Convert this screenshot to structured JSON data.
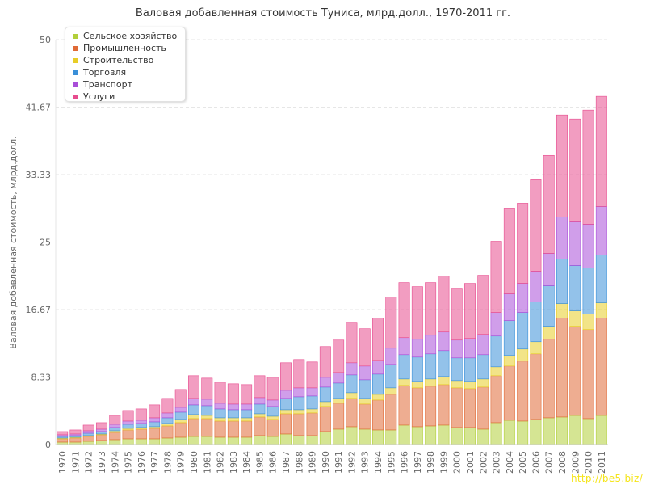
{
  "chart_data": {
    "type": "bar",
    "stacked": true,
    "title": "Валовая добавленная стоимость Туниса, млрд.долл., 1970-2011 гг.",
    "ylabel": "Валовая добавленная стоимость, млрд.долл.",
    "xlabel": "",
    "ylim": [
      0,
      50
    ],
    "yticks": [
      "0",
      "8.33",
      "16.67",
      "25",
      "33.33",
      "41.67",
      "50"
    ],
    "grid": true,
    "legend_position": "top-left",
    "categories": [
      "1970",
      "1971",
      "1972",
      "1973",
      "1974",
      "1975",
      "1976",
      "1977",
      "1978",
      "1979",
      "1980",
      "1981",
      "1982",
      "1983",
      "1984",
      "1985",
      "1986",
      "1987",
      "1988",
      "1989",
      "1990",
      "1991",
      "1992",
      "1993",
      "1994",
      "1995",
      "1996",
      "1997",
      "1998",
      "1999",
      "2000",
      "2001",
      "2002",
      "2003",
      "2004",
      "2005",
      "2006",
      "2007",
      "2008",
      "2009",
      "2010",
      "2011"
    ],
    "series": [
      {
        "name": "Сельское хозяйство",
        "color": "#b2cf3a",
        "values": [
          0.3,
          0.3,
          0.4,
          0.5,
          0.6,
          0.7,
          0.7,
          0.7,
          0.8,
          0.9,
          1.0,
          1.0,
          0.9,
          0.9,
          0.9,
          1.1,
          1.0,
          1.3,
          1.1,
          1.1,
          1.6,
          1.9,
          2.2,
          1.9,
          1.8,
          1.8,
          2.4,
          2.2,
          2.3,
          2.4,
          2.1,
          2.1,
          1.9,
          2.7,
          3.0,
          2.9,
          3.1,
          3.3,
          3.4,
          3.6,
          3.2,
          3.6
        ]
      },
      {
        "name": "Промышленность",
        "color": "#e06a36",
        "values": [
          0.4,
          0.5,
          0.6,
          0.7,
          0.9,
          1.1,
          1.2,
          1.3,
          1.5,
          1.8,
          2.2,
          2.2,
          2.0,
          2.0,
          2.0,
          2.3,
          2.1,
          2.5,
          2.7,
          2.8,
          3.1,
          3.2,
          3.5,
          3.1,
          3.7,
          4.4,
          4.9,
          4.8,
          4.9,
          5.0,
          4.9,
          4.8,
          5.2,
          5.8,
          6.7,
          7.4,
          8.1,
          9.7,
          12.2,
          11.0,
          11.0,
          12.0
        ]
      },
      {
        "name": "Строительство",
        "color": "#e8cd27",
        "values": [
          0.1,
          0.1,
          0.1,
          0.1,
          0.2,
          0.2,
          0.2,
          0.2,
          0.3,
          0.4,
          0.5,
          0.4,
          0.4,
          0.4,
          0.4,
          0.4,
          0.4,
          0.5,
          0.5,
          0.5,
          0.6,
          0.6,
          0.7,
          0.7,
          0.7,
          0.8,
          0.8,
          0.8,
          0.9,
          1.0,
          0.9,
          0.9,
          1.0,
          1.1,
          1.3,
          1.5,
          1.5,
          1.6,
          1.8,
          1.9,
          1.9,
          1.9
        ]
      },
      {
        "name": "Торговля",
        "color": "#3a8fd8",
        "values": [
          0.2,
          0.2,
          0.3,
          0.3,
          0.4,
          0.5,
          0.5,
          0.6,
          0.7,
          0.9,
          1.2,
          1.2,
          1.1,
          1.0,
          1.0,
          1.2,
          1.2,
          1.4,
          1.6,
          1.6,
          1.8,
          1.9,
          2.2,
          2.3,
          2.5,
          2.9,
          3.0,
          3.0,
          3.1,
          3.2,
          2.8,
          2.9,
          3.0,
          3.8,
          4.3,
          4.5,
          4.9,
          5.0,
          5.5,
          5.6,
          5.7,
          5.9
        ]
      },
      {
        "name": "Транспорт",
        "color": "#a94ed8",
        "values": [
          0.2,
          0.2,
          0.3,
          0.3,
          0.4,
          0.4,
          0.4,
          0.5,
          0.6,
          0.6,
          0.8,
          0.8,
          0.7,
          0.7,
          0.7,
          0.8,
          0.8,
          1.0,
          1.1,
          1.0,
          1.2,
          1.3,
          1.5,
          1.7,
          1.7,
          2.0,
          2.1,
          2.2,
          2.3,
          2.3,
          2.2,
          2.4,
          2.5,
          2.9,
          3.3,
          3.6,
          3.8,
          4.0,
          5.2,
          5.4,
          5.4,
          6.0
        ]
      },
      {
        "name": "Услуги",
        "color": "#e74c8e",
        "values": [
          0.4,
          0.5,
          0.7,
          0.8,
          1.1,
          1.3,
          1.4,
          1.6,
          1.8,
          2.2,
          2.8,
          2.6,
          2.6,
          2.5,
          2.4,
          2.7,
          2.8,
          3.4,
          3.5,
          3.2,
          3.8,
          4.0,
          5.0,
          4.6,
          5.2,
          6.3,
          6.8,
          6.5,
          6.5,
          6.9,
          6.4,
          6.8,
          7.3,
          8.8,
          10.6,
          9.9,
          11.3,
          12.1,
          12.6,
          12.7,
          14.1,
          13.6
        ]
      }
    ]
  },
  "watermark": "http://be5.biz/"
}
